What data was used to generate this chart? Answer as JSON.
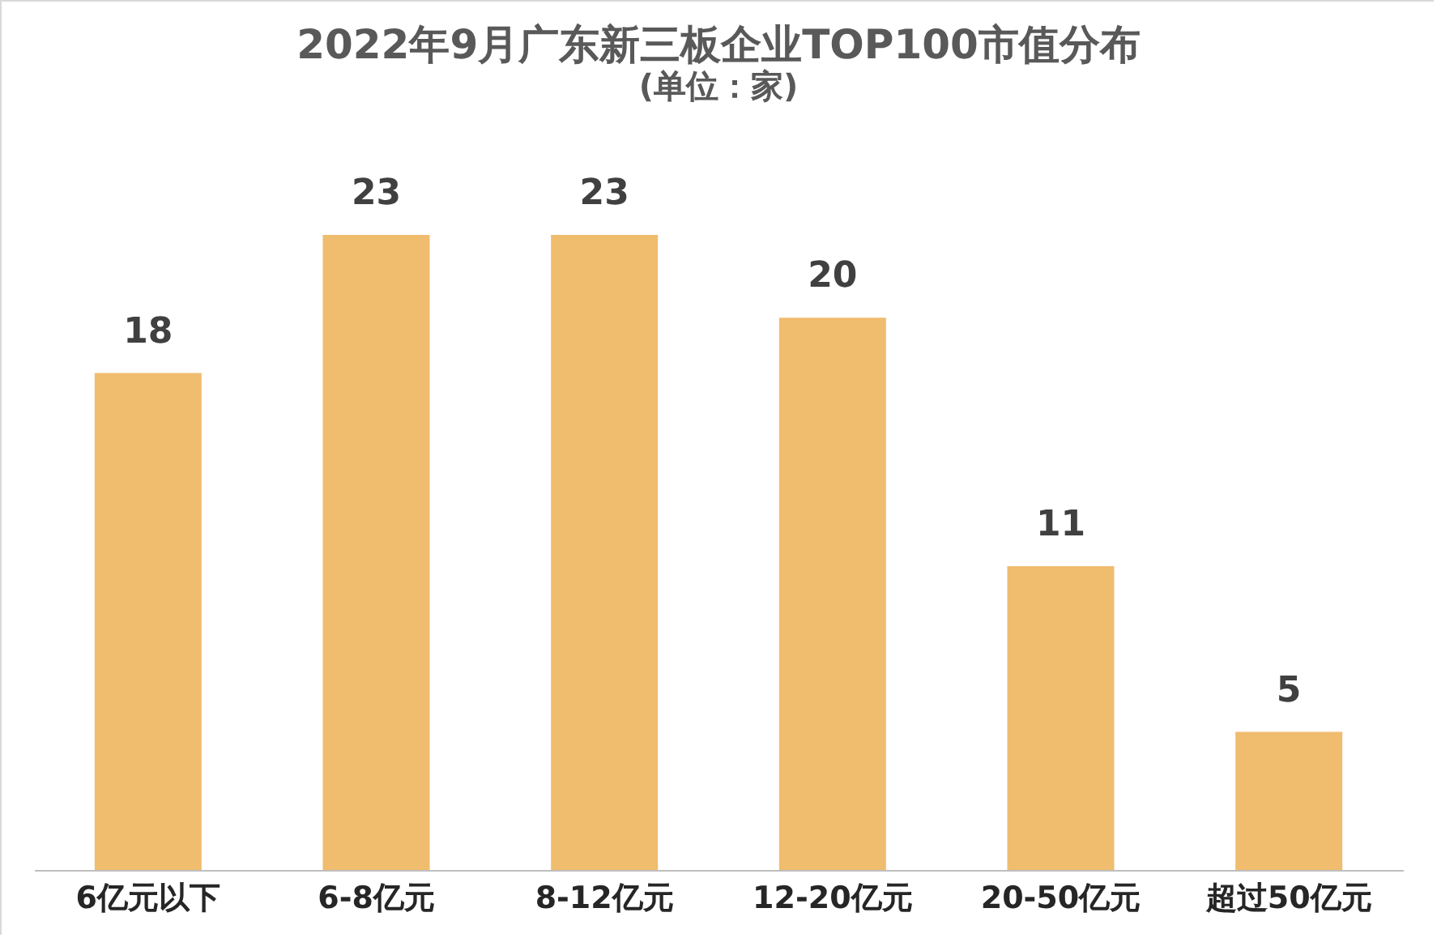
{
  "chart_data": {
    "type": "bar",
    "title": "2022年9月广东新三板企业TOP100市值分布",
    "subtitle": "(单位：家)",
    "categories": [
      "6亿元以下",
      "6-8亿元",
      "8-12亿元",
      "12-20亿元",
      "20-50亿元",
      "超过50亿元"
    ],
    "values": [
      18,
      23,
      23,
      20,
      11,
      5
    ],
    "color": "#f0bc6e",
    "data_labels": true,
    "grid": false,
    "tick_labels": "x"
  }
}
